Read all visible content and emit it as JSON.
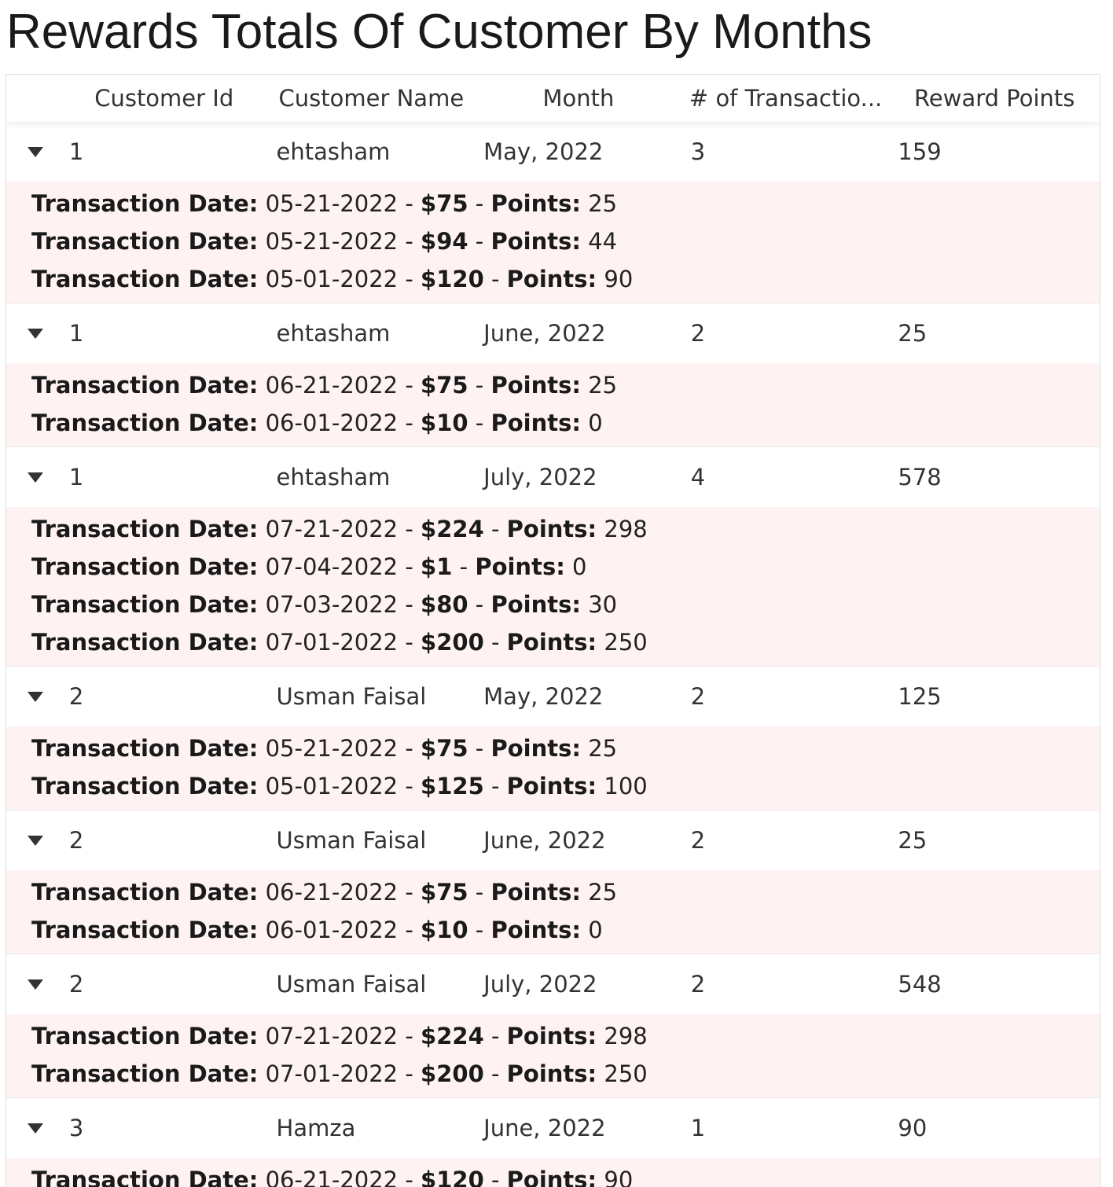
{
  "title": "Rewards Totals Of Customer By Months",
  "columns": [
    "",
    "Customer Id",
    "Customer Name",
    "Month",
    "# of Transactio...",
    "Reward Points"
  ],
  "labels": {
    "date": "Transaction Date:",
    "points": "Points:"
  },
  "rows": [
    {
      "id": "1",
      "name": "ehtasham",
      "month": "May, 2022",
      "count": "3",
      "points": "159",
      "tx": [
        {
          "date": "05-21-2022",
          "amount": "$75",
          "points": "25"
        },
        {
          "date": "05-21-2022",
          "amount": "$94",
          "points": "44"
        },
        {
          "date": "05-01-2022",
          "amount": "$120",
          "points": "90"
        }
      ]
    },
    {
      "id": "1",
      "name": "ehtasham",
      "month": "June, 2022",
      "count": "2",
      "points": "25",
      "tx": [
        {
          "date": "06-21-2022",
          "amount": "$75",
          "points": "25"
        },
        {
          "date": "06-01-2022",
          "amount": "$10",
          "points": "0"
        }
      ]
    },
    {
      "id": "1",
      "name": "ehtasham",
      "month": "July, 2022",
      "count": "4",
      "points": "578",
      "tx": [
        {
          "date": "07-21-2022",
          "amount": "$224",
          "points": "298"
        },
        {
          "date": "07-04-2022",
          "amount": "$1",
          "points": "0"
        },
        {
          "date": "07-03-2022",
          "amount": "$80",
          "points": "30"
        },
        {
          "date": "07-01-2022",
          "amount": "$200",
          "points": "250"
        }
      ]
    },
    {
      "id": "2",
      "name": "Usman Faisal",
      "month": "May, 2022",
      "count": "2",
      "points": "125",
      "tx": [
        {
          "date": "05-21-2022",
          "amount": "$75",
          "points": "25"
        },
        {
          "date": "05-01-2022",
          "amount": "$125",
          "points": "100"
        }
      ]
    },
    {
      "id": "2",
      "name": "Usman Faisal",
      "month": "June, 2022",
      "count": "2",
      "points": "25",
      "tx": [
        {
          "date": "06-21-2022",
          "amount": "$75",
          "points": "25"
        },
        {
          "date": "06-01-2022",
          "amount": "$10",
          "points": "0"
        }
      ]
    },
    {
      "id": "2",
      "name": "Usman Faisal",
      "month": "July, 2022",
      "count": "2",
      "points": "548",
      "tx": [
        {
          "date": "07-21-2022",
          "amount": "$224",
          "points": "298"
        },
        {
          "date": "07-01-2022",
          "amount": "$200",
          "points": "250"
        }
      ]
    },
    {
      "id": "3",
      "name": "Hamza",
      "month": "June, 2022",
      "count": "1",
      "points": "90",
      "tx": [
        {
          "date": "06-21-2022",
          "amount": "$120",
          "points": "90"
        }
      ]
    }
  ]
}
